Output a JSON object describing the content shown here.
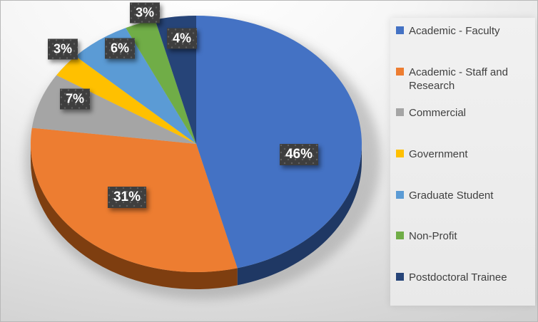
{
  "chart_data": {
    "type": "pie",
    "style": "3d",
    "title": "",
    "legend_position": "right",
    "unit": "percent",
    "series": [
      {
        "label": "Academic - Faculty",
        "value": 46,
        "pct": "46%",
        "color": "#4472C4",
        "side": "#1F3864"
      },
      {
        "label": "Academic - Staff and Research",
        "value": 31,
        "pct": "31%",
        "color": "#ED7D31",
        "side": "#7E3E10"
      },
      {
        "label": "Commercial",
        "value": 7,
        "pct": "7%",
        "color": "#A5A5A5",
        "side": "#767171"
      },
      {
        "label": "Government",
        "value": 3,
        "pct": "3%",
        "color": "#FFC000",
        "side": "#997404"
      },
      {
        "label": "Graduate Student",
        "value": 6,
        "pct": "6%",
        "color": "#5B9BD5",
        "side": "#2E75B6"
      },
      {
        "label": "Non-Profit",
        "value": 3,
        "pct": "3%",
        "color": "#70AD47",
        "side": "#507E32"
      },
      {
        "label": "Postdoctoral Trainee",
        "value": 4,
        "pct": "4%",
        "color": "#264478",
        "side": "#17294A"
      }
    ]
  }
}
